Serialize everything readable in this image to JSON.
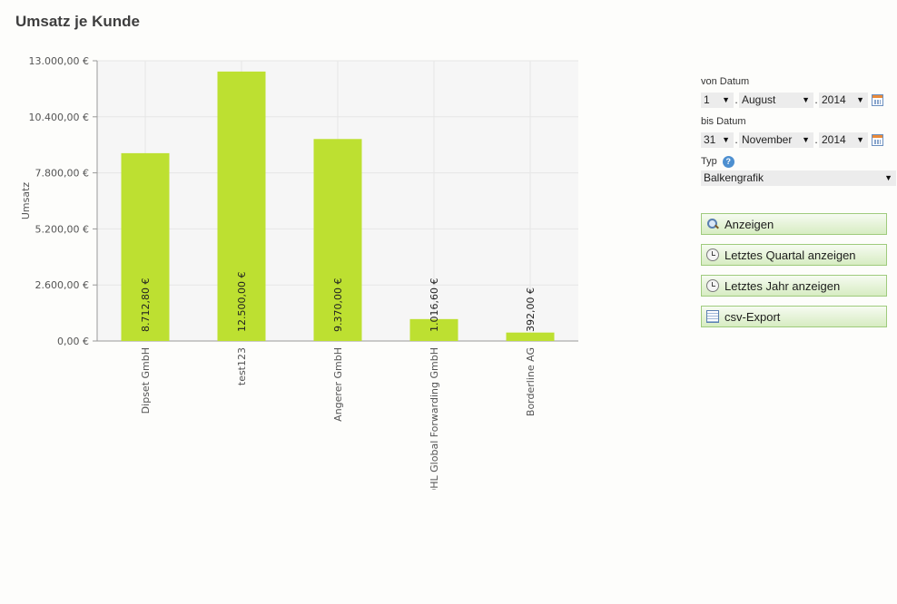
{
  "page": {
    "title": "Umsatz je Kunde"
  },
  "filters": {
    "from_label": "von Datum",
    "from": {
      "day": "1",
      "month": "August",
      "year": "2014"
    },
    "to_label": "bis Datum",
    "to": {
      "day": "31",
      "month": "November",
      "year": "2014"
    },
    "date_separator": ".",
    "type_label": "Typ",
    "type_value": "Balkengrafik",
    "help_glyph": "?",
    "dropdown_glyph": "▼"
  },
  "actions": {
    "show": "Anzeigen",
    "last_quarter": "Letztes Quartal anzeigen",
    "last_year": "Letztes Jahr anzeigen",
    "csv_export": "csv-Export"
  },
  "icons": {
    "show": "search-icon",
    "last_quarter": "clock-icon",
    "last_year": "clock-icon",
    "csv_export": "csv-icon",
    "calendar": "calendar-icon",
    "help": "help-icon"
  },
  "colors": {
    "bar": "#bde031",
    "plot_background": "#f6f6f6",
    "grid": "#e6e6e6",
    "axis": "#999999",
    "text": "#555555"
  },
  "chart_data": {
    "type": "bar",
    "title": "",
    "xlabel": "",
    "ylabel": "Umsatz",
    "categories": [
      "Dipset GmbH",
      "test123",
      "Angerer GmbH",
      "DHL Global Forwarding GmbH",
      "Borderline AG"
    ],
    "values": [
      8712.8,
      12500.0,
      9370.0,
      1016.6,
      392.0
    ],
    "value_labels": [
      "8.712,80 €",
      "12.500,00 €",
      "9.370,00 €",
      "1.016,60 €",
      "392,00 €"
    ],
    "y_ticks": [
      0,
      2600,
      5200,
      7800,
      10400,
      13000
    ],
    "y_tick_labels": [
      "0,00 €",
      "2.600,00 €",
      "5.200,00 €",
      "7.800,00 €",
      "10.400,00 €",
      "13.000,00 €"
    ],
    "ylim": [
      0,
      13000
    ],
    "grid": true,
    "legend": "none"
  }
}
